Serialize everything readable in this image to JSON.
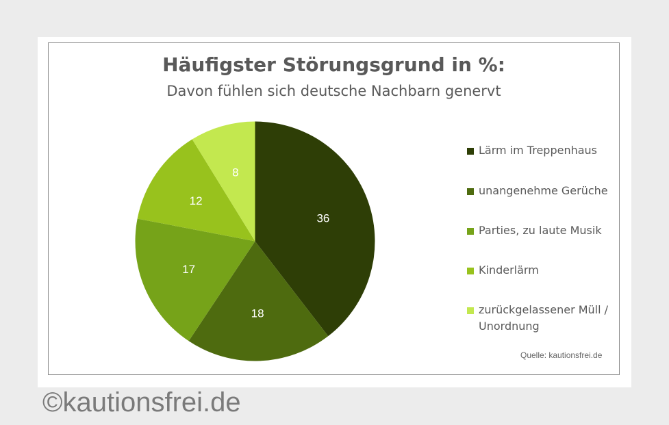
{
  "chart_data": {
    "type": "pie",
    "title": "Häufigster Störungsgrund in %:",
    "subtitle": "Davon fühlen sich deutsche Nachbarn genervt",
    "categories": [
      "Lärm im Treppenhaus",
      "unangenehme Gerüche",
      "Parties, zu laute Musik",
      "Kinderlärm",
      "zurückgelassener Müll / Unordnung"
    ],
    "values": [
      36,
      18,
      17,
      12,
      8
    ],
    "colors": [
      "#2e3e06",
      "#4e6b0f",
      "#76a319",
      "#98c21d",
      "#c3e84f"
    ],
    "legend_position": "right",
    "source": "Quelle: kautionsfrei.de"
  },
  "copyright": "©kautionsfrei.de"
}
